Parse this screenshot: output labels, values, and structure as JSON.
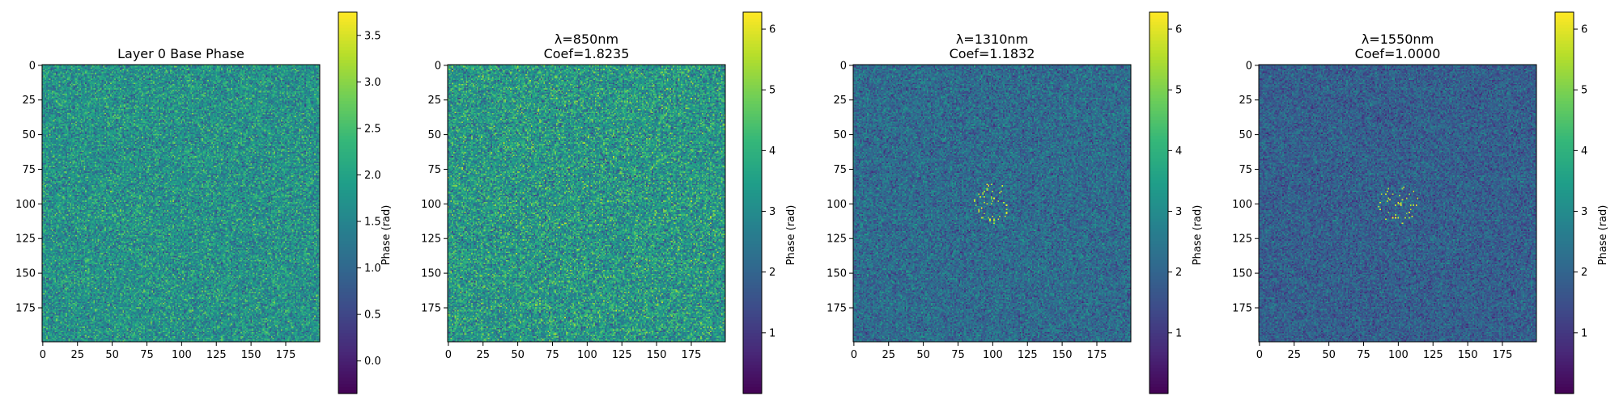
{
  "chart_data": [
    {
      "type": "heatmap",
      "title_lines": [
        "Layer 0 Base Phase"
      ],
      "colormap": "viridis",
      "grid_size": 200,
      "x_ticks": [
        0,
        25,
        50,
        75,
        100,
        125,
        150,
        175
      ],
      "y_ticks": [
        0,
        25,
        50,
        75,
        100,
        125,
        150,
        175
      ],
      "xlim": [
        0,
        199
      ],
      "ylim": [
        199,
        0
      ],
      "colorbar": {
        "label": "Phase (rad)",
        "range": [
          -0.35,
          3.75
        ],
        "ticks": [
          0.0,
          0.5,
          1.0,
          1.5,
          2.0,
          2.5,
          3.0,
          3.5
        ],
        "tick_labels": [
          "0.0",
          "0.5",
          "1.0",
          "1.5",
          "2.0",
          "2.5",
          "3.0",
          "3.5"
        ]
      },
      "field": {
        "typical_range": [
          0.3,
          3.2
        ],
        "center_feature": false
      }
    },
    {
      "type": "heatmap",
      "title_lines": [
        "λ=850nm",
        "Coef=1.8235"
      ],
      "colormap": "viridis",
      "grid_size": 200,
      "x_ticks": [
        0,
        25,
        50,
        75,
        100,
        125,
        150,
        175
      ],
      "y_ticks": [
        0,
        25,
        50,
        75,
        100,
        125,
        150,
        175
      ],
      "xlim": [
        0,
        199
      ],
      "ylim": [
        199,
        0
      ],
      "colorbar": {
        "label": "Phase (rad)",
        "range": [
          0.0,
          6.28
        ],
        "ticks": [
          1,
          2,
          3,
          4,
          5,
          6
        ],
        "tick_labels": [
          "1",
          "2",
          "3",
          "4",
          "5",
          "6"
        ]
      },
      "field": {
        "typical_range": [
          0.8,
          5.9
        ],
        "center_feature": false
      }
    },
    {
      "type": "heatmap",
      "title_lines": [
        "λ=1310nm",
        "Coef=1.1832"
      ],
      "colormap": "viridis",
      "grid_size": 200,
      "x_ticks": [
        0,
        25,
        50,
        75,
        100,
        125,
        150,
        175
      ],
      "y_ticks": [
        0,
        25,
        50,
        75,
        100,
        125,
        150,
        175
      ],
      "xlim": [
        0,
        199
      ],
      "ylim": [
        199,
        0
      ],
      "colorbar": {
        "label": "Phase (rad)",
        "range": [
          0.0,
          6.28
        ],
        "ticks": [
          1,
          2,
          3,
          4,
          5,
          6
        ],
        "tick_labels": [
          "1",
          "2",
          "3",
          "4",
          "5",
          "6"
        ]
      },
      "field": {
        "typical_range": [
          0.5,
          3.9
        ],
        "center_feature": true,
        "center": [
          100,
          100
        ],
        "center_radius": 15
      }
    },
    {
      "type": "heatmap",
      "title_lines": [
        "λ=1550nm",
        "Coef=1.0000"
      ],
      "colormap": "viridis",
      "grid_size": 200,
      "x_ticks": [
        0,
        25,
        50,
        75,
        100,
        125,
        150,
        175
      ],
      "y_ticks": [
        0,
        25,
        50,
        75,
        100,
        125,
        150,
        175
      ],
      "xlim": [
        0,
        199
      ],
      "ylim": [
        199,
        0
      ],
      "colorbar": {
        "label": "Phase (rad)",
        "range": [
          0.0,
          6.28
        ],
        "ticks": [
          1,
          2,
          3,
          4,
          5,
          6
        ],
        "tick_labels": [
          "1",
          "2",
          "3",
          "4",
          "5",
          "6"
        ]
      },
      "field": {
        "typical_range": [
          0.4,
          3.4
        ],
        "center_feature": true,
        "center": [
          100,
          100
        ],
        "center_radius": 15
      }
    }
  ]
}
